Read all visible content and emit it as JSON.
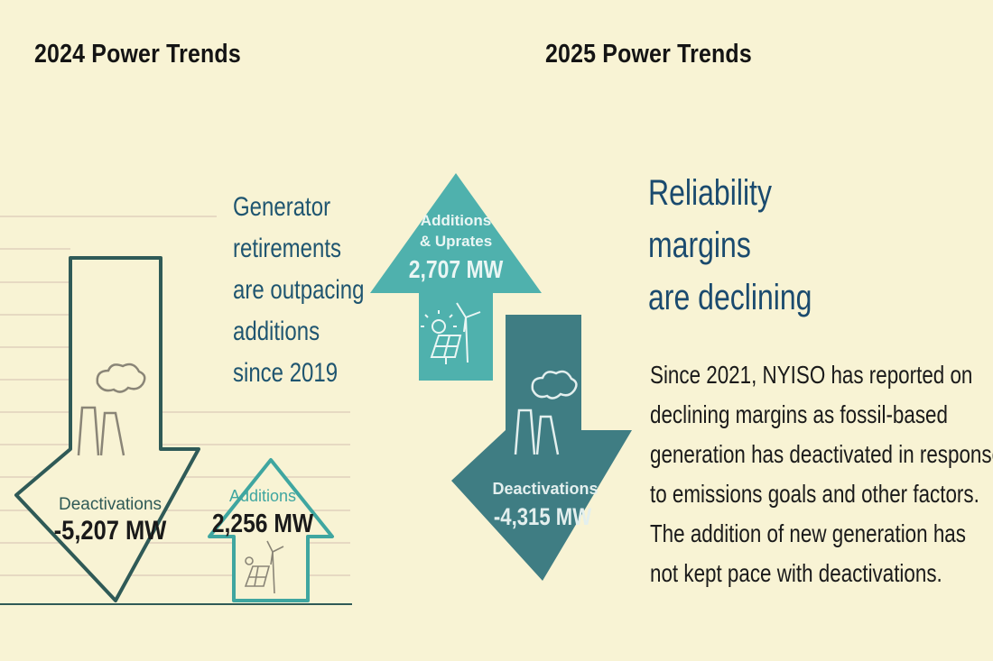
{
  "left_panel": {
    "title": "2024 Power Trends",
    "tagline": [
      "Generator",
      "retirements",
      "are outpacing",
      "additions",
      "since 2019"
    ],
    "deactivations": {
      "label": "Deactivations",
      "value": "-5,207 MW"
    },
    "additions": {
      "label": "Additions",
      "value": "2,256 MW"
    }
  },
  "right_panel": {
    "title": "2025 Power Trends",
    "additions": {
      "label_lines": [
        "Additions",
        "& Uprates"
      ],
      "value": "2,707 MW"
    },
    "deactivations": {
      "label": "Deactivations",
      "value": "-4,315 MW"
    },
    "headline": [
      "Reliability",
      "margins",
      "are declining"
    ],
    "body": [
      "Since 2021, NYISO has reported on",
      "declining margins as fossil-based",
      "generation has deactivated in response",
      "to emissions goals and other factors.",
      "The addition of new generation has",
      "not kept pace with deactivations."
    ]
  },
  "colors": {
    "background": "#f8f3d4",
    "teal_light": "#4fb1ad",
    "teal_dark": "#3f7d83",
    "outline_dark": "#2f5a57",
    "outline_teal": "#3fa6a0",
    "text_navy": "#1a4a6e"
  },
  "icons": [
    "power-plant-icon",
    "solar-panel-icon",
    "wind-turbine-icon",
    "sun-icon"
  ]
}
